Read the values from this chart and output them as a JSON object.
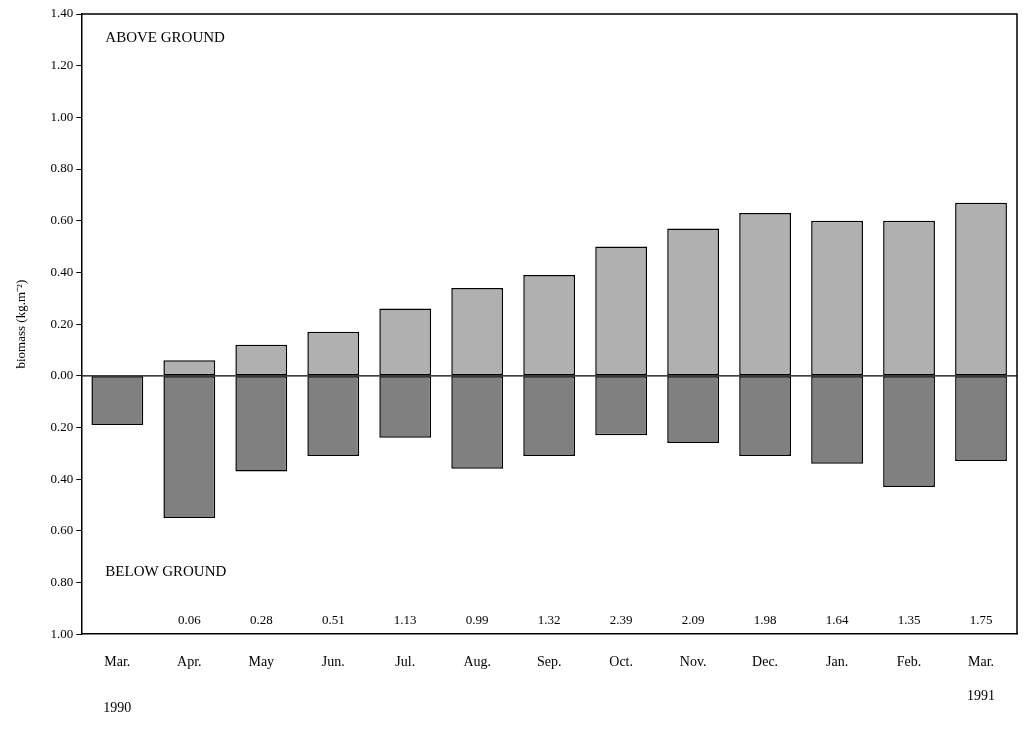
{
  "chart_data": {
    "type": "bar",
    "stacked": true,
    "ylabel": "biomass (kg.m⁻²)",
    "categories": [
      "Mar.",
      "Apr.",
      "May",
      "Jun.",
      "Jul.",
      "Aug.",
      "Sep.",
      "Oct.",
      "Nov.",
      "Dec.",
      "Jan.",
      "Feb.",
      "Mar."
    ],
    "series": [
      {
        "color": "#b0b0b0",
        "values": [
          null,
          0.06,
          0.12,
          0.17,
          0.26,
          0.34,
          0.39,
          0.5,
          0.57,
          0.63,
          0.6,
          0.6,
          0.67
        ]
      },
      {
        "color": "#808080",
        "values": [
          -0.19,
          -0.55,
          -0.37,
          -0.31,
          -0.24,
          -0.36,
          -0.31,
          -0.23,
          -0.26,
          -0.31,
          -0.34,
          -0.43,
          -0.33
        ]
      }
    ],
    "ylim": [
      -1.0,
      1.4
    ],
    "yticks": [
      {
        "value": -1.0,
        "label": "1.00"
      },
      {
        "value": -0.8,
        "label": "0.80"
      },
      {
        "value": -0.6,
        "label": "0.60"
      },
      {
        "value": -0.4,
        "label": "0.40"
      },
      {
        "value": -0.2,
        "label": "0.20"
      },
      {
        "value": 0,
        "label": "0.00"
      },
      {
        "value": 0.2,
        "label": "0.20"
      },
      {
        "value": 0.4,
        "label": "0.40"
      },
      {
        "value": 0.6,
        "label": "0.60"
      },
      {
        "value": 0.8,
        "label": "0.80"
      },
      {
        "value": 1.0,
        "label": "1.00"
      },
      {
        "value": 1.2,
        "label": "1.20"
      },
      {
        "value": 1.4,
        "label": "1.40"
      }
    ],
    "ref_lines": [
      {
        "axis": "y",
        "value": 0
      }
    ],
    "grid": false,
    "legend": false,
    "annotations": [
      "ABOVE GROUND",
      "BELOW GROUND",
      "1990",
      "1991",
      "0.06",
      "0.28",
      "0.51",
      "1.13",
      "0.99",
      "1.32",
      "2.39",
      "2.09",
      "1.98",
      "1.64",
      "1.35",
      "1.75"
    ]
  }
}
